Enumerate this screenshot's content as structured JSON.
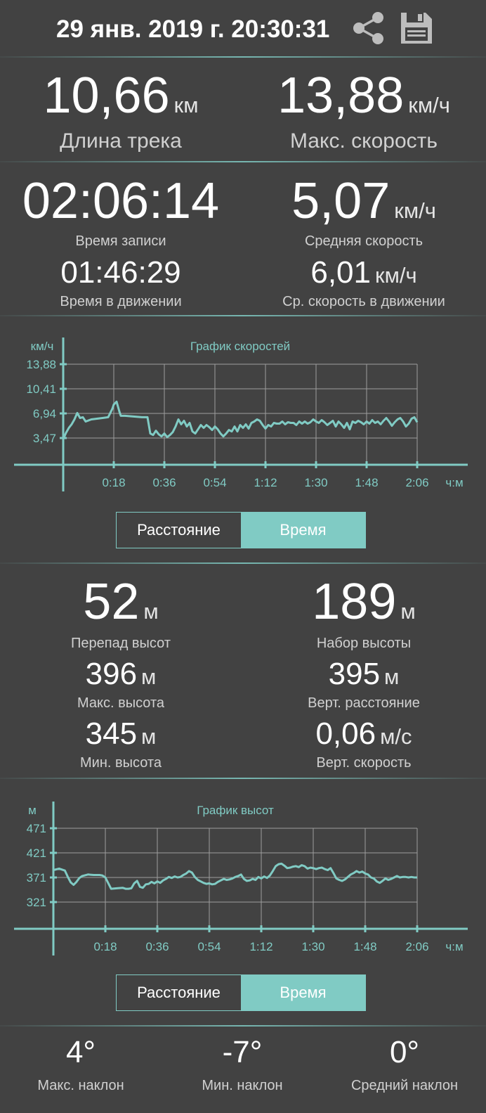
{
  "header": {
    "title": "29 янв. 2019 г. 20:30:31"
  },
  "track": {
    "length": {
      "value": "10,66",
      "unit": "км",
      "label": "Длина трека"
    },
    "max_speed": {
      "value": "13,88",
      "unit": "км/ч",
      "label": "Макс. скорость"
    },
    "record_time": {
      "value": "02:06:14",
      "label": "Время записи"
    },
    "avg_speed": {
      "value": "5,07",
      "unit": "км/ч",
      "label": "Средняя скорость"
    },
    "moving_time": {
      "value": "01:46:29",
      "label": "Время в движении"
    },
    "moving_avg_speed": {
      "value": "6,01",
      "unit": "км/ч",
      "label": "Ср. скорость в движении"
    }
  },
  "speed_toggle": {
    "distance": "Расстояние",
    "time": "Время",
    "active": "time"
  },
  "altitude": {
    "diff": {
      "value": "52",
      "unit": "м",
      "label": "Перепад высот"
    },
    "gain": {
      "value": "189",
      "unit": "м",
      "label": "Набор высоты"
    },
    "max": {
      "value": "396",
      "unit": "м",
      "label": "Макс. высота"
    },
    "vert_distance": {
      "value": "395",
      "unit": "м",
      "label": "Верт. расстояние"
    },
    "min": {
      "value": "345",
      "unit": "м",
      "label": "Мин. высота"
    },
    "vert_speed": {
      "value": "0,06",
      "unit": "м/с",
      "label": "Верт. скорость"
    }
  },
  "altitude_toggle": {
    "distance": "Расстояние",
    "time": "Время",
    "active": "time"
  },
  "slope": {
    "max": {
      "value": "4°",
      "label": "Макс. наклон"
    },
    "min": {
      "value": "-7°",
      "label": "Мин. наклон"
    },
    "avg": {
      "value": "0°",
      "label": "Средний наклон"
    }
  },
  "colors": {
    "background": "#424242",
    "accent": "#80cbc4",
    "grid": "#9e9e9e",
    "text": "#ffffff"
  },
  "icons": {
    "share": "share-icon",
    "save": "floppy-disk-icon"
  },
  "chart_data": [
    {
      "type": "line",
      "title": "График скоростей",
      "ylabel": "км/ч",
      "xlabel": "ч:м",
      "x_ticks": [
        "0:18",
        "0:36",
        "0:54",
        "1:12",
        "1:30",
        "1:48",
        "2:06"
      ],
      "y_ticks": [
        "3,47",
        "6,94",
        "10,41",
        "13,88"
      ],
      "xlim": [
        0,
        126
      ],
      "ylim": [
        0,
        13.88
      ],
      "grid": true,
      "series": [
        {
          "x": [
            0,
            1,
            2,
            3,
            4,
            5,
            6,
            7,
            8,
            10,
            12,
            14,
            16,
            17.5,
            18,
            19,
            20,
            20.5,
            22,
            28,
            30,
            31,
            32,
            33,
            34,
            35,
            36,
            37,
            38,
            39,
            40,
            41,
            42,
            43,
            44,
            45,
            46,
            47,
            48,
            49,
            50,
            51,
            52,
            53,
            54,
            55,
            56,
            57,
            58,
            59,
            60,
            61,
            62,
            63,
            64,
            65,
            66,
            67,
            68,
            69,
            70,
            71,
            72,
            73,
            74,
            75,
            76,
            77,
            78,
            79,
            80,
            81,
            82,
            83,
            84,
            85,
            86,
            87,
            88,
            89,
            90,
            91,
            92,
            93,
            94,
            95,
            96,
            97,
            98,
            99,
            100,
            101,
            102,
            103,
            104,
            105,
            106,
            107,
            108,
            109,
            110,
            111,
            112,
            113,
            114,
            115,
            116,
            117,
            118,
            119,
            120,
            121,
            122,
            123,
            124,
            125,
            126
          ],
          "values": [
            3.3,
            4.2,
            4.9,
            5.4,
            6.1,
            7.0,
            6.3,
            6.4,
            5.8,
            6.1,
            6.2,
            6.3,
            6.4,
            7.6,
            8.2,
            8.6,
            7.2,
            6.6,
            6.6,
            6.4,
            6.4,
            4.1,
            3.9,
            4.5,
            4.0,
            3.7,
            4.1,
            3.6,
            3.9,
            4.3,
            5.1,
            6.1,
            5.4,
            5.9,
            5.1,
            5.6,
            4.4,
            4.1,
            4.7,
            5.3,
            4.9,
            5.3,
            5.0,
            4.6,
            5.1,
            4.7,
            4.1,
            3.7,
            4.1,
            4.6,
            4.4,
            5.1,
            4.4,
            5.3,
            4.9,
            5.4,
            4.8,
            5.6,
            5.8,
            6.1,
            5.9,
            5.3,
            4.8,
            5.3,
            5.1,
            5.6,
            5.5,
            5.5,
            5.8,
            5.4,
            5.7,
            5.6,
            5.6,
            5.3,
            5.8,
            5.5,
            5.8,
            5.5,
            5.7,
            6.1,
            5.8,
            5.6,
            6.0,
            5.7,
            5.3,
            5.6,
            5.9,
            5.1,
            5.8,
            5.4,
            4.9,
            5.6,
            4.7,
            5.8,
            5.6,
            5.9,
            5.7,
            5.4,
            5.8,
            5.5,
            6.0,
            5.6,
            5.8,
            5.4,
            5.9,
            6.3,
            5.8,
            5.2,
            5.7,
            6.1,
            6.3,
            5.8,
            5.1,
            5.5,
            6.2,
            6.4,
            5.7
          ]
        }
      ]
    },
    {
      "type": "line",
      "title": "График высот",
      "ylabel": "м",
      "xlabel": "ч:м",
      "x_ticks": [
        "0:18",
        "0:36",
        "0:54",
        "1:12",
        "1:30",
        "1:48",
        "2:06"
      ],
      "y_ticks": [
        "321",
        "371",
        "421",
        "471"
      ],
      "xlim": [
        0,
        126
      ],
      "ylim": [
        271,
        471
      ],
      "grid": true,
      "series": [
        {
          "x": [
            0,
            2,
            4,
            5,
            6,
            7,
            8,
            9,
            10,
            12,
            14,
            16,
            17,
            18,
            20,
            22,
            24,
            25,
            26,
            27,
            28,
            29,
            30,
            31,
            32,
            33,
            34,
            35,
            36,
            37,
            38,
            39,
            40,
            41,
            42,
            43,
            44,
            45,
            46,
            47,
            48,
            49,
            50,
            51,
            52,
            53,
            54,
            55,
            56,
            57,
            58,
            59,
            60,
            61,
            62,
            63,
            64,
            65,
            66,
            67,
            68,
            69,
            70,
            71,
            72,
            73,
            74,
            75,
            76,
            77,
            78,
            79,
            80,
            81,
            82,
            83,
            84,
            85,
            86,
            87,
            88,
            89,
            90,
            91,
            92,
            93,
            94,
            95,
            96,
            97,
            98,
            99,
            100,
            101,
            102,
            103,
            104,
            105,
            106,
            107,
            108,
            109,
            110,
            111,
            112,
            113,
            114,
            115,
            116,
            117,
            118,
            119,
            120,
            121,
            122,
            123,
            124,
            125,
            126
          ],
          "values": [
            386,
            389,
            385,
            372,
            361,
            356,
            362,
            370,
            374,
            377,
            376,
            376,
            375,
            371,
            348,
            349,
            350,
            348,
            348,
            349,
            359,
            364,
            352,
            350,
            357,
            358,
            362,
            359,
            363,
            360,
            365,
            368,
            372,
            370,
            373,
            371,
            372,
            376,
            379,
            384,
            381,
            372,
            366,
            363,
            360,
            358,
            359,
            357,
            358,
            362,
            365,
            368,
            366,
            367,
            369,
            372,
            374,
            377,
            368,
            364,
            365,
            368,
            366,
            372,
            369,
            373,
            370,
            375,
            384,
            394,
            398,
            399,
            395,
            390,
            391,
            393,
            394,
            392,
            396,
            394,
            389,
            391,
            390,
            388,
            390,
            391,
            388,
            386,
            390,
            380,
            369,
            366,
            364,
            367,
            372,
            377,
            380,
            384,
            381,
            383,
            379,
            377,
            371,
            369,
            363,
            360,
            364,
            369,
            366,
            368,
            371,
            374,
            371,
            372,
            372,
            371,
            372,
            371,
            371
          ]
        }
      ]
    }
  ]
}
